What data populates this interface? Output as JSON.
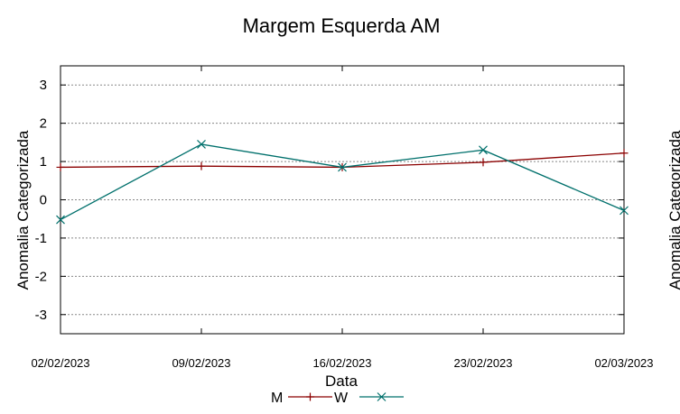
{
  "chart_data": {
    "type": "line",
    "title": "Margem Esquerda AM",
    "xlabel": "Data",
    "ylabel": "Anomalia Categorizada",
    "second_ylabel_fragment": "Anomalia Categorizada",
    "categories": [
      "02/02/2023",
      "09/02/2023",
      "16/02/2023",
      "23/02/2023",
      "02/03/2023"
    ],
    "x_tick_labels": [
      "02/02/2023",
      "09/02/2023",
      "16/02/2023",
      "23/02/2023",
      "02/03/2023"
    ],
    "ylim": [
      -3.5,
      3.5
    ],
    "yticks": [
      -3,
      -2,
      -1,
      0,
      1,
      2,
      3
    ],
    "ytick_labels": [
      "-3",
      "-2",
      "-1",
      "0",
      "1",
      "2",
      "3"
    ],
    "grid": true,
    "legend_position": "bottom-center",
    "series": [
      {
        "name": "M",
        "marker": "plus",
        "color": "#8b0000",
        "values": [
          0.85,
          0.88,
          0.85,
          0.98,
          1.22
        ]
      },
      {
        "name": "W",
        "marker": "cross",
        "color": "#00706c",
        "values": [
          -0.52,
          1.45,
          0.85,
          1.3,
          -0.28
        ]
      }
    ]
  }
}
